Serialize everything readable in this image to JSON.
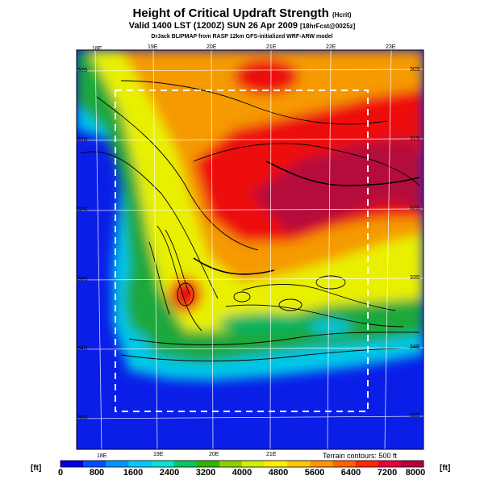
{
  "title": {
    "main": "Height of Critical Updraft Strength",
    "main_unit": "(Hcrit)",
    "valid": "Valid 1400 LST (1200Z) SUN 26 Apr 2009",
    "fcst": "[18hrFcst@0025z]",
    "credit": "DrJack BLIPMAP from RASP 12km GFS-initialized WRF-ARW model"
  },
  "map": {
    "lon_top": [
      "18E",
      "19E",
      "20E",
      "21E",
      "22E",
      "23E"
    ],
    "lon_bottom": [
      "18E",
      "19E",
      "20E",
      "21E"
    ],
    "lat_left": [
      "30S",
      "31S",
      "32S",
      "33S",
      "34S",
      "35S"
    ],
    "lat_right": [
      "30S",
      "31S",
      "32S",
      "33S",
      "34S",
      "35S"
    ],
    "terrain_note": "Terrain contours: 500 ft",
    "palette": {
      "ocean": "#0a1ee8",
      "coast_cyan": "#00c8e8",
      "green": "#1ea83c",
      "yellow": "#f0f000",
      "orange": "#f59a00",
      "red": "#ee1010",
      "deep_red": "#b4103a"
    }
  },
  "legend": {
    "unit_left": "[ft]",
    "unit_right": "[ft]",
    "ticks": [
      "0",
      "800",
      "1600",
      "2400",
      "3200",
      "4000",
      "4800",
      "5600",
      "6400",
      "7200",
      "8000"
    ],
    "colors": [
      "#0000e6",
      "#0050ff",
      "#0096ff",
      "#00c8ff",
      "#00e6d2",
      "#00c864",
      "#32b400",
      "#8cd200",
      "#d2f000",
      "#fff000",
      "#ffc800",
      "#ff9600",
      "#ff6400",
      "#ff2800",
      "#e6003c",
      "#b4003c"
    ]
  }
}
